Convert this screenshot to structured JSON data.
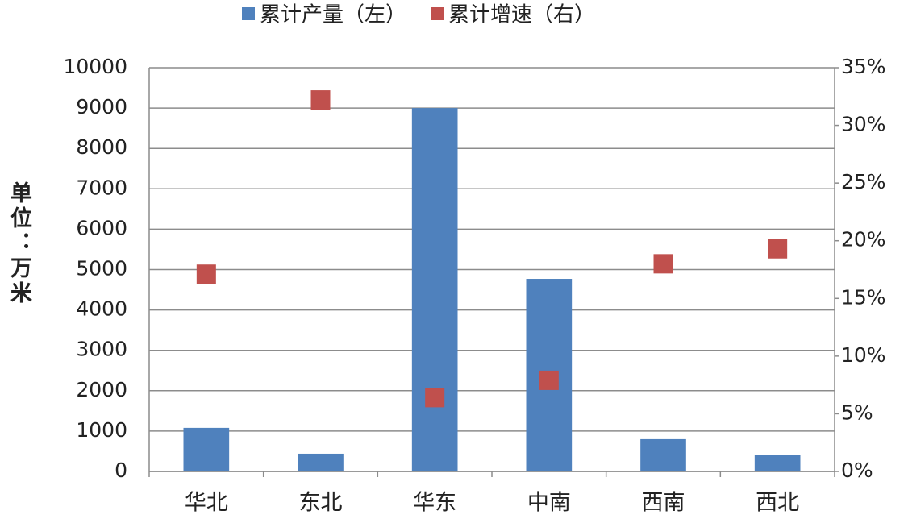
{
  "chart_data": {
    "type": "bar_scatter",
    "y_label": "单位：万米",
    "categories": [
      "华北",
      "东北",
      "华东",
      "中南",
      "西南",
      "西北"
    ],
    "series": [
      {
        "name": "累计产量（左）",
        "type": "bar",
        "color": "#4f81bd",
        "values": [
          1080,
          440,
          9000,
          4770,
          800,
          400
        ]
      },
      {
        "name": "累计增速（右）",
        "type": "scatter",
        "axis": "y2",
        "color": "#c0504d",
        "values": [
          17.1,
          32.2,
          6.4,
          7.9,
          18.0,
          19.3
        ]
      }
    ],
    "ylim": [
      0,
      10000
    ],
    "yticks": [
      0,
      1000,
      2000,
      3000,
      4000,
      5000,
      6000,
      7000,
      8000,
      9000,
      10000
    ],
    "y2lim": [
      0,
      35
    ],
    "y2ticks": [
      {
        "value": 0,
        "label": "0%"
      },
      {
        "value": 5,
        "label": "5%"
      },
      {
        "value": 10,
        "label": "10%"
      },
      {
        "value": 15,
        "label": "15%"
      },
      {
        "value": 20,
        "label": "20%"
      },
      {
        "value": 25,
        "label": "25%"
      },
      {
        "value": 30,
        "label": "30%"
      },
      {
        "value": 35,
        "label": "35%"
      }
    ],
    "grid": true,
    "legend": "top"
  }
}
